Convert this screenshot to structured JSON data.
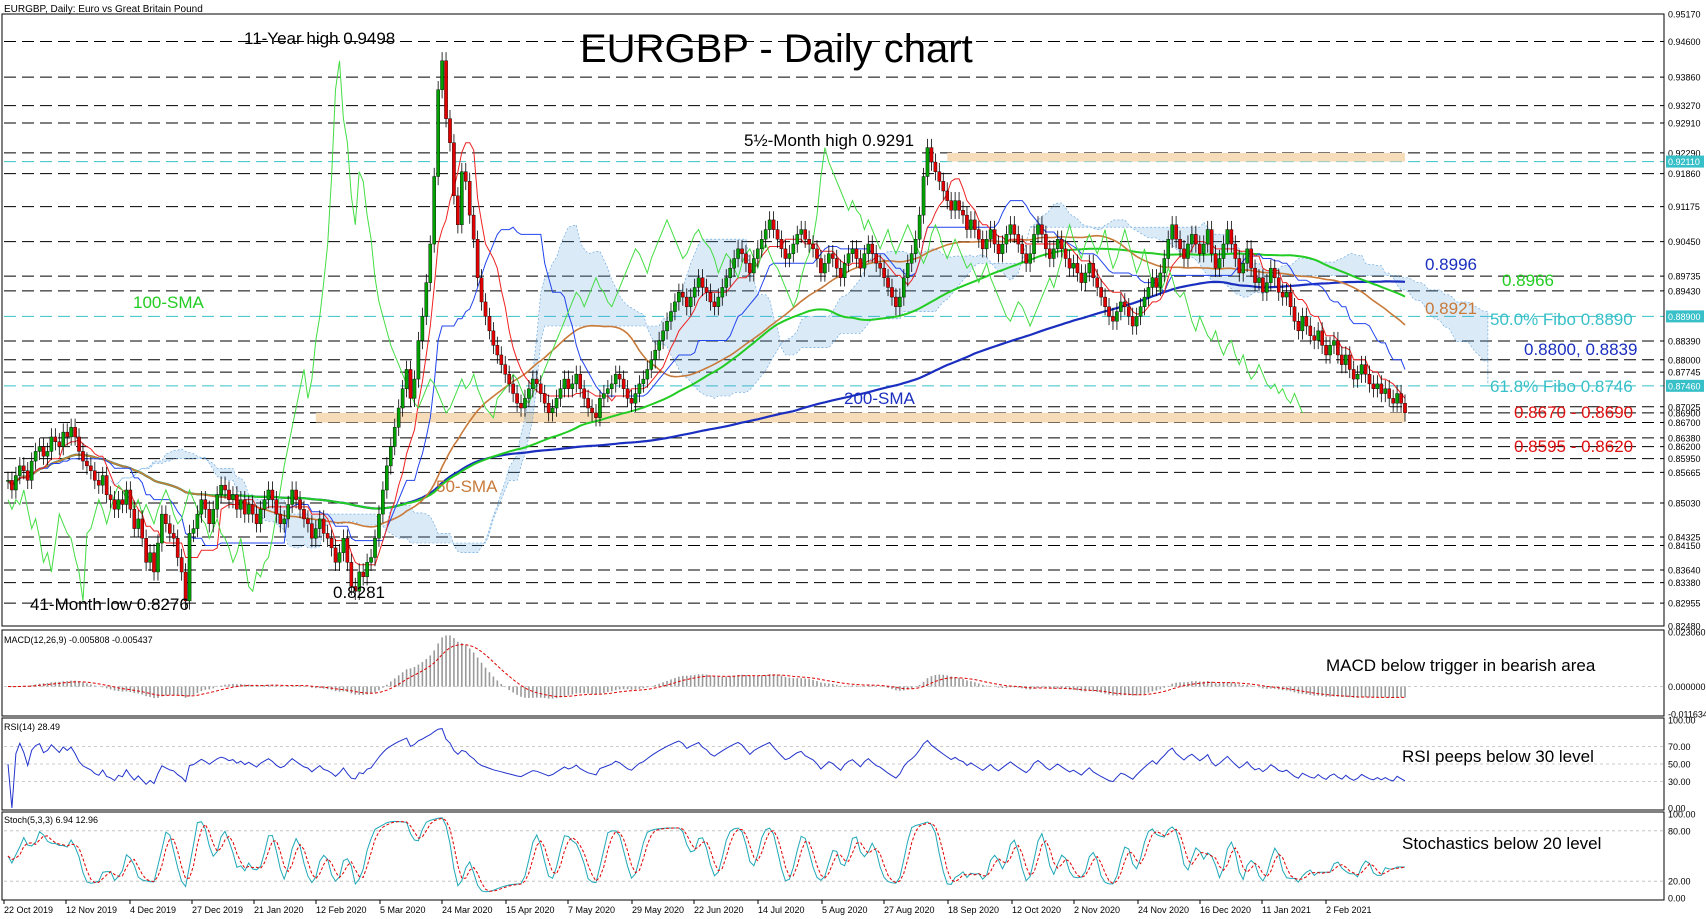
{
  "header": {
    "symbol_desc": "EURGBP, Daily:  Euro vs Great Britain Pound",
    "title": "EURGBP - Daily chart"
  },
  "colors": {
    "candle_up": "#00a000",
    "candle_down": "#e00000",
    "sma200": "#1a2fbf",
    "sma100": "#22cc22",
    "sma50": "#c87a3a",
    "tenkan": "#ee2222",
    "kijun": "#2244ee",
    "chikou": "#44dd44",
    "cloud_bull": "#e8a868",
    "cloud_bear": "#5aa0dc",
    "fibo": "#38c0c8",
    "zone": "#f6dcb8",
    "annot_red": "#e01010"
  },
  "annotations": {
    "high_11y": "11-Year high 0.9498",
    "high_55m": "5½-Month high 0.9291",
    "low_41m": "41-Month low 0.8276",
    "low_0281": "0.8281",
    "sma100": "100-SMA",
    "sma200": "200-SMA",
    "sma50": "50-SMA",
    "v8996": "0.8996",
    "v8966": "0.8966",
    "v8921": "0.8921",
    "fibo50": "50.0% Fibo 0.8890",
    "v8800": "0.8800, 0.8839",
    "fibo618": "61.8% Fibo 0.8746",
    "zone1": "0.8670 - 0.8690",
    "zone2": "0.8595 - 0.8620"
  },
  "indicators": {
    "macd": {
      "header": "MACD(12,26,9) -0.005808 -0.005437",
      "note": "MACD below trigger in bearish area",
      "scale": [
        "0.023060",
        "0.000000",
        "-0.011634"
      ]
    },
    "rsi": {
      "header": "RSI(14) 28.49",
      "note": "RSI peeps below 30 level",
      "scale": [
        "100.00",
        "70.00",
        "50.00",
        "30.00",
        "0.00"
      ]
    },
    "stoch": {
      "header": "Stoch(5,3,3) 6.94 12.96",
      "note": "Stochastics below 20 level",
      "scale": [
        "100.00",
        "80.00",
        "20.00",
        "0.00"
      ]
    }
  },
  "chart_data": {
    "type": "line",
    "title": "EURGBP - Daily chart",
    "x_labels": [
      "22 Oct 2019",
      "12 Nov 2019",
      "4 Dec 2019",
      "27 Dec 2019",
      "21 Jan 2020",
      "12 Feb 2020",
      "5 Mar 2020",
      "24 Mar 2020",
      "15 Apr 2020",
      "7 May 2020",
      "29 May 2020",
      "22 Jun 2020",
      "14 Jul 2020",
      "5 Aug 2020",
      "27 Aug 2020",
      "18 Sep 2020",
      "12 Oct 2020",
      "2 Nov 2020",
      "24 Nov 2020",
      "16 Dec 2020",
      "11 Jan 2021",
      "2 Feb 2021"
    ],
    "y_labels": [
      "0.95170",
      "0.94600",
      "0.93860",
      "0.93270",
      "0.92910",
      "0.92290",
      "0.92110",
      "0.91860",
      "0.91175",
      "0.90450",
      "0.89735",
      "0.89430",
      "0.88900",
      "0.88390",
      "0.88000",
      "0.87745",
      "0.87460",
      "0.87025",
      "0.86900",
      "0.86700",
      "0.86380",
      "0.86200",
      "0.85950",
      "0.85665",
      "0.85030",
      "0.84325",
      "0.84150",
      "0.83640",
      "0.83380",
      "0.82955",
      "0.82480"
    ],
    "highlighted_y": [
      "0.92110",
      "0.88900",
      "0.87460"
    ],
    "ylim": [
      0.8248,
      0.9517
    ],
    "close": [
      0.855,
      0.853,
      0.856,
      0.858,
      0.857,
      0.855,
      0.859,
      0.861,
      0.862,
      0.86,
      0.861,
      0.864,
      0.863,
      0.862,
      0.865,
      0.864,
      0.866,
      0.864,
      0.861,
      0.859,
      0.858,
      0.857,
      0.855,
      0.854,
      0.856,
      0.852,
      0.851,
      0.849,
      0.851,
      0.85,
      0.853,
      0.849,
      0.845,
      0.847,
      0.843,
      0.838,
      0.84,
      0.836,
      0.842,
      0.848,
      0.846,
      0.844,
      0.843,
      0.839,
      0.836,
      0.83,
      0.844,
      0.845,
      0.848,
      0.851,
      0.849,
      0.846,
      0.849,
      0.852,
      0.854,
      0.853,
      0.851,
      0.852,
      0.849,
      0.851,
      0.848,
      0.85,
      0.848,
      0.846,
      0.849,
      0.851,
      0.853,
      0.851,
      0.848,
      0.846,
      0.847,
      0.85,
      0.853,
      0.851,
      0.849,
      0.847,
      0.846,
      0.843,
      0.845,
      0.847,
      0.844,
      0.843,
      0.841,
      0.838,
      0.84,
      0.843,
      0.838,
      0.833,
      0.832,
      0.836,
      0.835,
      0.838,
      0.839,
      0.843,
      0.848,
      0.853,
      0.858,
      0.862,
      0.866,
      0.87,
      0.874,
      0.878,
      0.872,
      0.876,
      0.884,
      0.889,
      0.896,
      0.904,
      0.918,
      0.936,
      0.942,
      0.93,
      0.925,
      0.914,
      0.908,
      0.919,
      0.917,
      0.91,
      0.905,
      0.897,
      0.892,
      0.889,
      0.886,
      0.883,
      0.881,
      0.879,
      0.877,
      0.875,
      0.873,
      0.871,
      0.87,
      0.872,
      0.874,
      0.876,
      0.875,
      0.873,
      0.871,
      0.869,
      0.87,
      0.872,
      0.874,
      0.876,
      0.874,
      0.875,
      0.877,
      0.874,
      0.872,
      0.87,
      0.869,
      0.868,
      0.872,
      0.873,
      0.874,
      0.875,
      0.877,
      0.876,
      0.874,
      0.872,
      0.871,
      0.873,
      0.875,
      0.876,
      0.878,
      0.88,
      0.882,
      0.884,
      0.886,
      0.888,
      0.89,
      0.892,
      0.894,
      0.893,
      0.891,
      0.893,
      0.895,
      0.897,
      0.895,
      0.894,
      0.892,
      0.891,
      0.893,
      0.895,
      0.897,
      0.899,
      0.901,
      0.903,
      0.902,
      0.9,
      0.898,
      0.901,
      0.903,
      0.905,
      0.907,
      0.909,
      0.907,
      0.905,
      0.903,
      0.901,
      0.902,
      0.904,
      0.906,
      0.907,
      0.905,
      0.904,
      0.903,
      0.901,
      0.898,
      0.9,
      0.902,
      0.901,
      0.899,
      0.897,
      0.9,
      0.902,
      0.903,
      0.901,
      0.899,
      0.902,
      0.904,
      0.902,
      0.9,
      0.899,
      0.897,
      0.895,
      0.893,
      0.891,
      0.893,
      0.897,
      0.9,
      0.902,
      0.905,
      0.91,
      0.918,
      0.924,
      0.921,
      0.919,
      0.917,
      0.915,
      0.913,
      0.911,
      0.913,
      0.911,
      0.91,
      0.907,
      0.909,
      0.907,
      0.905,
      0.903,
      0.905,
      0.907,
      0.904,
      0.902,
      0.904,
      0.906,
      0.908,
      0.906,
      0.904,
      0.902,
      0.9,
      0.902,
      0.906,
      0.908,
      0.906,
      0.903,
      0.901,
      0.903,
      0.905,
      0.903,
      0.901,
      0.899,
      0.9,
      0.898,
      0.896,
      0.898,
      0.9,
      0.897,
      0.895,
      0.893,
      0.891,
      0.889,
      0.888,
      0.89,
      0.892,
      0.891,
      0.889,
      0.887,
      0.889,
      0.891,
      0.893,
      0.895,
      0.897,
      0.895,
      0.898,
      0.901,
      0.905,
      0.908,
      0.905,
      0.903,
      0.901,
      0.904,
      0.906,
      0.904,
      0.902,
      0.904,
      0.907,
      0.902,
      0.899,
      0.901,
      0.904,
      0.907,
      0.904,
      0.901,
      0.898,
      0.9,
      0.903,
      0.899,
      0.896,
      0.897,
      0.894,
      0.896,
      0.899,
      0.897,
      0.894,
      0.893,
      0.894,
      0.891,
      0.888,
      0.886,
      0.889,
      0.887,
      0.885,
      0.884,
      0.886,
      0.883,
      0.881,
      0.883,
      0.884,
      0.881,
      0.879,
      0.881,
      0.878,
      0.876,
      0.877,
      0.879,
      0.877,
      0.875,
      0.874,
      0.875,
      0.873,
      0.874,
      0.872,
      0.871,
      0.873,
      0.871,
      0.869
    ]
  }
}
